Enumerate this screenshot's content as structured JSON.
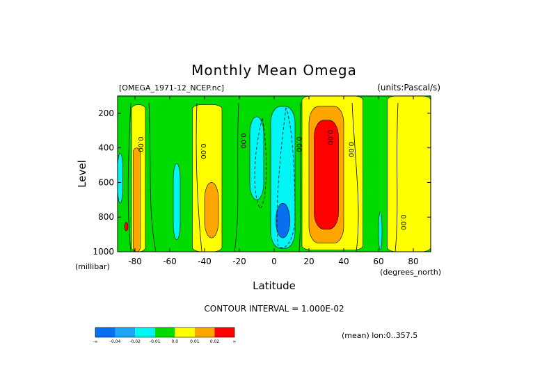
{
  "chart_data": {
    "type": "heatmap",
    "title": "Monthly Mean Omega",
    "subtitle_left": "[OMEGA_1971-12_NCEP.nc]",
    "subtitle_right": "(units:Pascal/s)",
    "xlabel": "Latitude",
    "xunits": "(degrees_north)",
    "ylabel": "Level",
    "yunits": "(millibar)",
    "xlim": [
      -90,
      90
    ],
    "ylim": [
      1000,
      100
    ],
    "x_ticks": [
      -80,
      -60,
      -40,
      -20,
      0,
      20,
      40,
      60,
      80
    ],
    "y_ticks": [
      200,
      400,
      600,
      800,
      1000
    ],
    "contour_interval_text": "CONTOUR INTERVAL = 1.000E-02",
    "mean_note": "(mean) lon:0..357.5",
    "colorbar": {
      "labels": [
        "-∞",
        "-0.04",
        "-0.02",
        "-0.01",
        "0.0",
        "0.01",
        "0.02",
        "∞"
      ],
      "colors": [
        "#0a6ef0",
        "#1fa5f5",
        "#00f5f5",
        "#00dc00",
        "#ffff00",
        "#ffa500",
        "#ff0000"
      ]
    },
    "contour_labels": [
      {
        "text": "0.00",
        "x": -78,
        "y": 380
      },
      {
        "text": "0.00",
        "x": -42,
        "y": 420
      },
      {
        "text": "0.00",
        "x": -19,
        "y": 360
      },
      {
        "text": "0.00",
        "x": 13,
        "y": 380
      },
      {
        "text": "0.00",
        "x": 31,
        "y": 340
      },
      {
        "text": "0.00",
        "x": 43,
        "y": 410
      },
      {
        "text": "0.00",
        "x": 73,
        "y": 830
      }
    ],
    "regions": [
      {
        "category": "yellow",
        "lat": [
          -82,
          -74
        ],
        "lev": [
          150,
          1000
        ]
      },
      {
        "category": "orange",
        "lat": [
          -81,
          -77
        ],
        "lev": [
          400,
          1000
        ]
      },
      {
        "category": "red",
        "lat": [
          -86,
          -84
        ],
        "lev": [
          830,
          880
        ]
      },
      {
        "category": "cyan",
        "lat": [
          -90,
          -87
        ],
        "lev": [
          430,
          720
        ]
      },
      {
        "category": "cyan",
        "lat": [
          -58,
          -54
        ],
        "lev": [
          490,
          930
        ]
      },
      {
        "category": "yellow",
        "lat": [
          -47,
          -30
        ],
        "lev": [
          150,
          1000
        ]
      },
      {
        "category": "orange",
        "lat": [
          -40,
          -32
        ],
        "lev": [
          600,
          920
        ]
      },
      {
        "category": "cyan",
        "lat": [
          -14,
          -6
        ],
        "lev": [
          220,
          700
        ]
      },
      {
        "category": "cyan",
        "lat": [
          -2,
          12
        ],
        "lev": [
          160,
          980
        ]
      },
      {
        "category": "blue",
        "lat": [
          1,
          9
        ],
        "lev": [
          720,
          920
        ]
      },
      {
        "category": "yellow",
        "lat": [
          16,
          51
        ],
        "lev": [
          100,
          990
        ]
      },
      {
        "category": "orange",
        "lat": [
          20,
          40
        ],
        "lev": [
          160,
          950
        ]
      },
      {
        "category": "red",
        "lat": [
          23,
          37
        ],
        "lev": [
          240,
          870
        ]
      },
      {
        "category": "cyan",
        "lat": [
          60,
          62
        ],
        "lev": [
          770,
          990
        ]
      },
      {
        "category": "yellow",
        "lat": [
          65,
          90
        ],
        "lev": [
          100,
          1000
        ]
      }
    ]
  }
}
